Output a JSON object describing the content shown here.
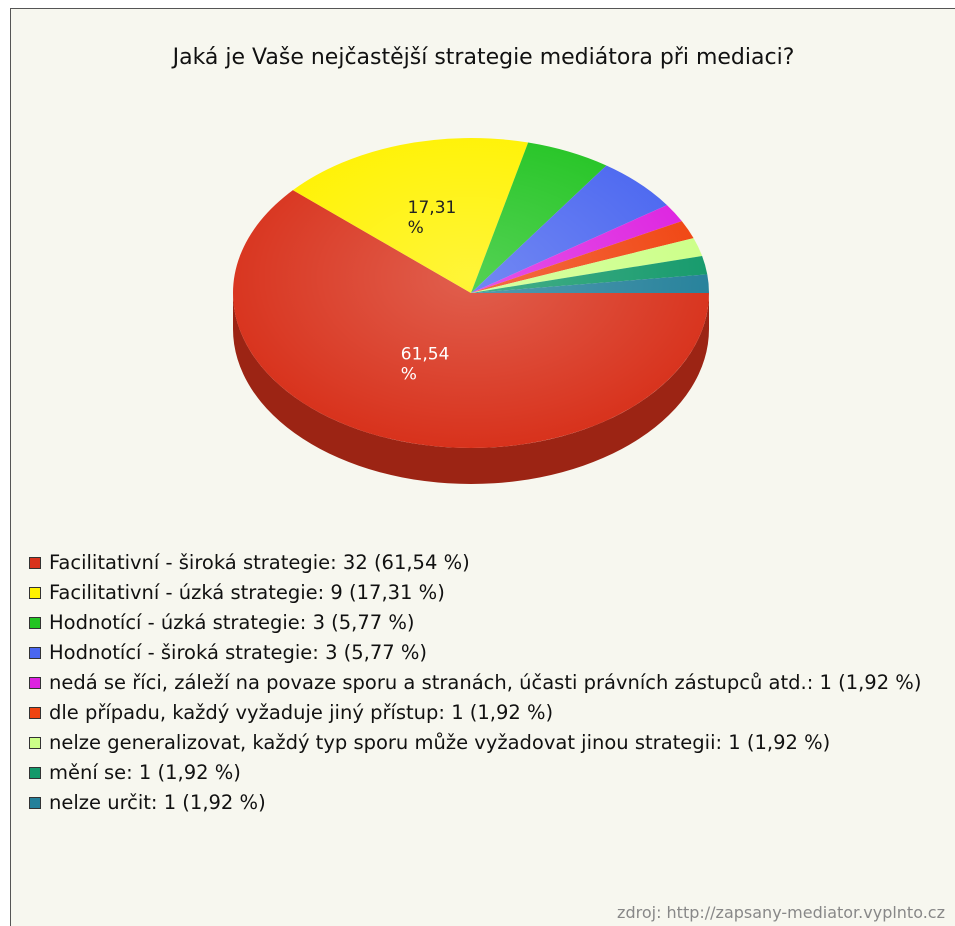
{
  "chart_data": {
    "type": "pie",
    "title": "Jaká je Vaše nejčastější strategie mediátora při mediaci?",
    "categories": [
      "Facilitativní - široká strategie: 32 (61,54 %)",
      "Facilitativní - úzká strategie: 9 (17,31 %)",
      "Hodnotící - úzká strategie: 3 (5,77 %)",
      "Hodnotící - široká strategie: 3 (5,77 %)",
      "nedá se říci, záleží na povaze sporu a stranách, účasti právních zástupců atd.: 1 (1,92 %)",
      "dle případu, každý vyžaduje jiný přístup: 1 (1,92 %)",
      "nelze generalizovat, každý typ sporu může vyžadovat jinou strategii: 1 (1,92 %)",
      "mění se: 1 (1,92 %)",
      "nelze určit: 1 (1,92 %)"
    ],
    "values": [
      61.54,
      17.31,
      5.77,
      5.77,
      1.92,
      1.92,
      1.92,
      1.92,
      1.92
    ],
    "value_labels": [
      "61,54 %",
      "17,31 %",
      null,
      null,
      null,
      null,
      null,
      null,
      null
    ],
    "colors": [
      "#d8321c",
      "#fff200",
      "#22c422",
      "#4a66f0",
      "#dd22e0",
      "#f04410",
      "#ccff88",
      "#13996a",
      "#24809a"
    ],
    "source": "zdroj: http://zapsany-mediator.vyplnto.cz"
  }
}
